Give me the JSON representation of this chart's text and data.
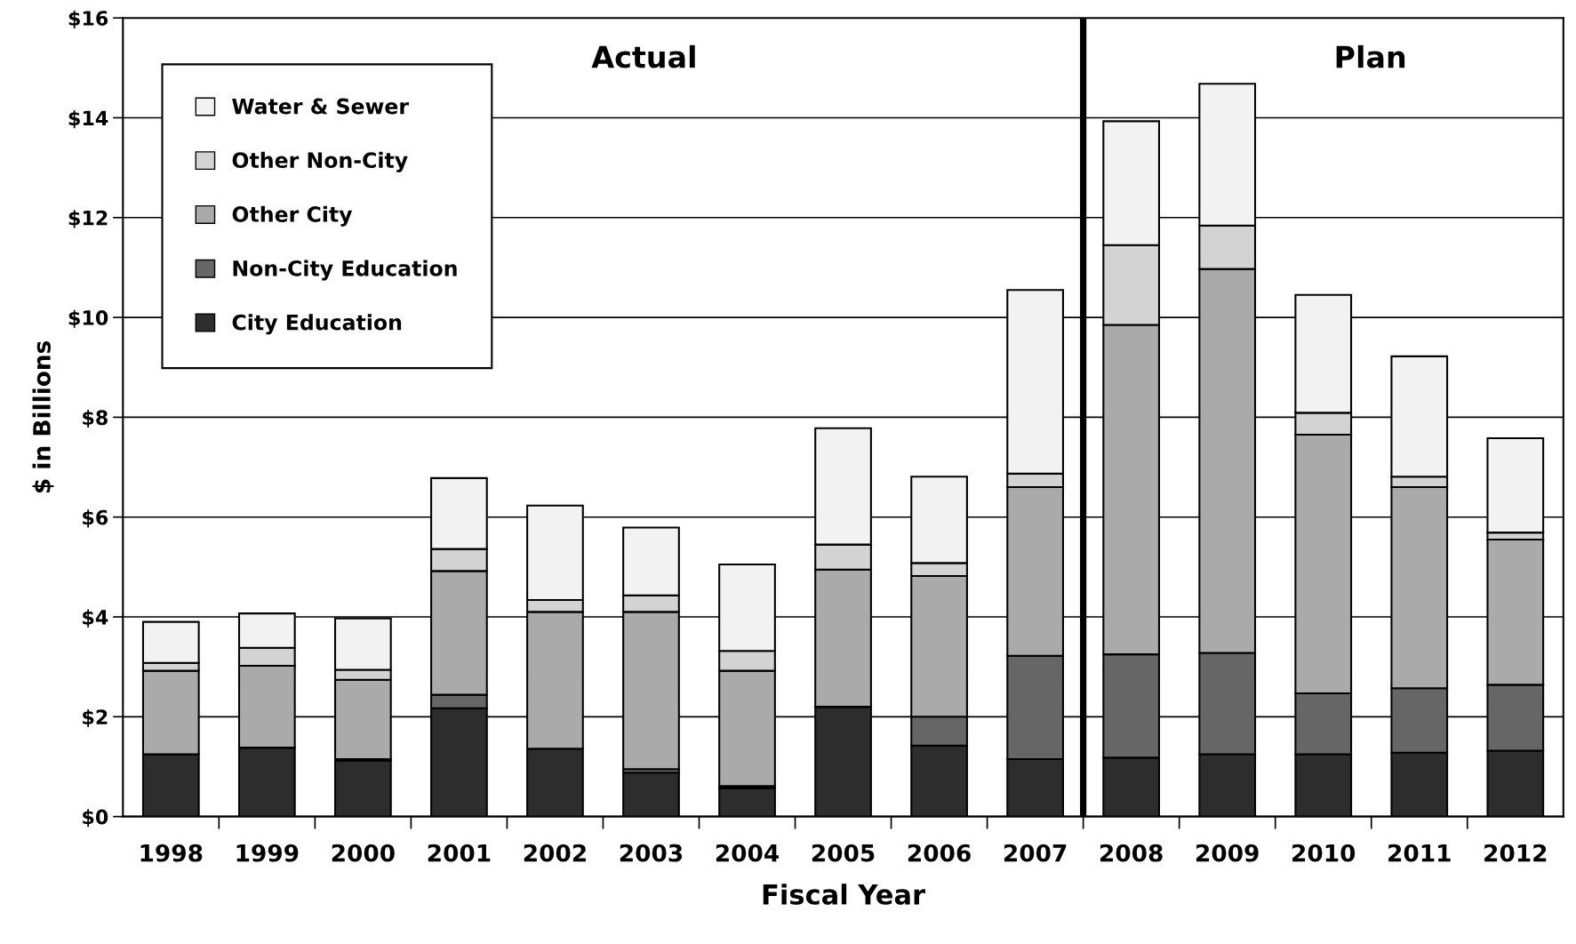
{
  "chart_data": {
    "type": "bar",
    "stacked": true,
    "xlabel": "Fiscal Year",
    "ylabel": "$ in Billions",
    "x": [
      1998,
      1999,
      2000,
      2001,
      2002,
      2003,
      2004,
      2005,
      2006,
      2007,
      2008,
      2009,
      2010,
      2011,
      2012
    ],
    "xlim": [
      1997.5,
      2012.5
    ],
    "xticks": [
      1998,
      1999,
      2000,
      2001,
      2002,
      2003,
      2004,
      2005,
      2006,
      2007,
      2008,
      2009,
      2010,
      2011,
      2012
    ],
    "ref_lines": [
      {
        "axis": "x",
        "value": 2007.5,
        "color": "#000000"
      }
    ],
    "series": [
      {
        "name": "City Education",
        "color": "#2d2d2d",
        "values": [
          1.25,
          1.38,
          1.12,
          2.17,
          1.36,
          0.88,
          0.57,
          2.2,
          1.42,
          1.15,
          1.18,
          1.25,
          1.25,
          1.28,
          1.32
        ]
      },
      {
        "name": "Non-City Education",
        "color": "#666666",
        "values": [
          0,
          0,
          0.03,
          0.27,
          0,
          0.07,
          0.04,
          0,
          0.58,
          2.07,
          2.07,
          2.03,
          1.22,
          1.29,
          1.32
        ]
      },
      {
        "name": "Other City",
        "color": "#aaaaaa",
        "values": [
          1.67,
          1.64,
          1.59,
          2.48,
          2.74,
          3.15,
          2.31,
          2.75,
          2.82,
          3.38,
          6.6,
          7.69,
          5.18,
          4.03,
          2.91
        ]
      },
      {
        "name": "Other Non-City",
        "color": "#d3d3d3",
        "values": [
          0.16,
          0.36,
          0.2,
          0.44,
          0.24,
          0.33,
          0.4,
          0.5,
          0.26,
          0.27,
          1.6,
          0.87,
          0.44,
          0.21,
          0.14
        ]
      },
      {
        "name": "Water & Sewer",
        "color": "#f2f2f2",
        "values": [
          0.82,
          0.69,
          1.03,
          1.42,
          1.89,
          1.36,
          1.73,
          2.33,
          1.73,
          3.68,
          2.48,
          2.84,
          2.36,
          2.41,
          1.89
        ]
      }
    ],
    "ylim": [
      0,
      16
    ],
    "yticks": [
      {
        "value": 0,
        "label": "$0"
      },
      {
        "value": 2,
        "label": "$2"
      },
      {
        "value": 4,
        "label": "$4"
      },
      {
        "value": 6,
        "label": "$6"
      },
      {
        "value": 8,
        "label": "$8"
      },
      {
        "value": 10,
        "label": "$10"
      },
      {
        "value": 12,
        "label": "$12"
      },
      {
        "value": 14,
        "label": "$14"
      },
      {
        "value": 16,
        "label": "$16"
      }
    ],
    "grid": "y",
    "legend": "top left",
    "annotations": [
      "Actual",
      "Plan"
    ]
  }
}
